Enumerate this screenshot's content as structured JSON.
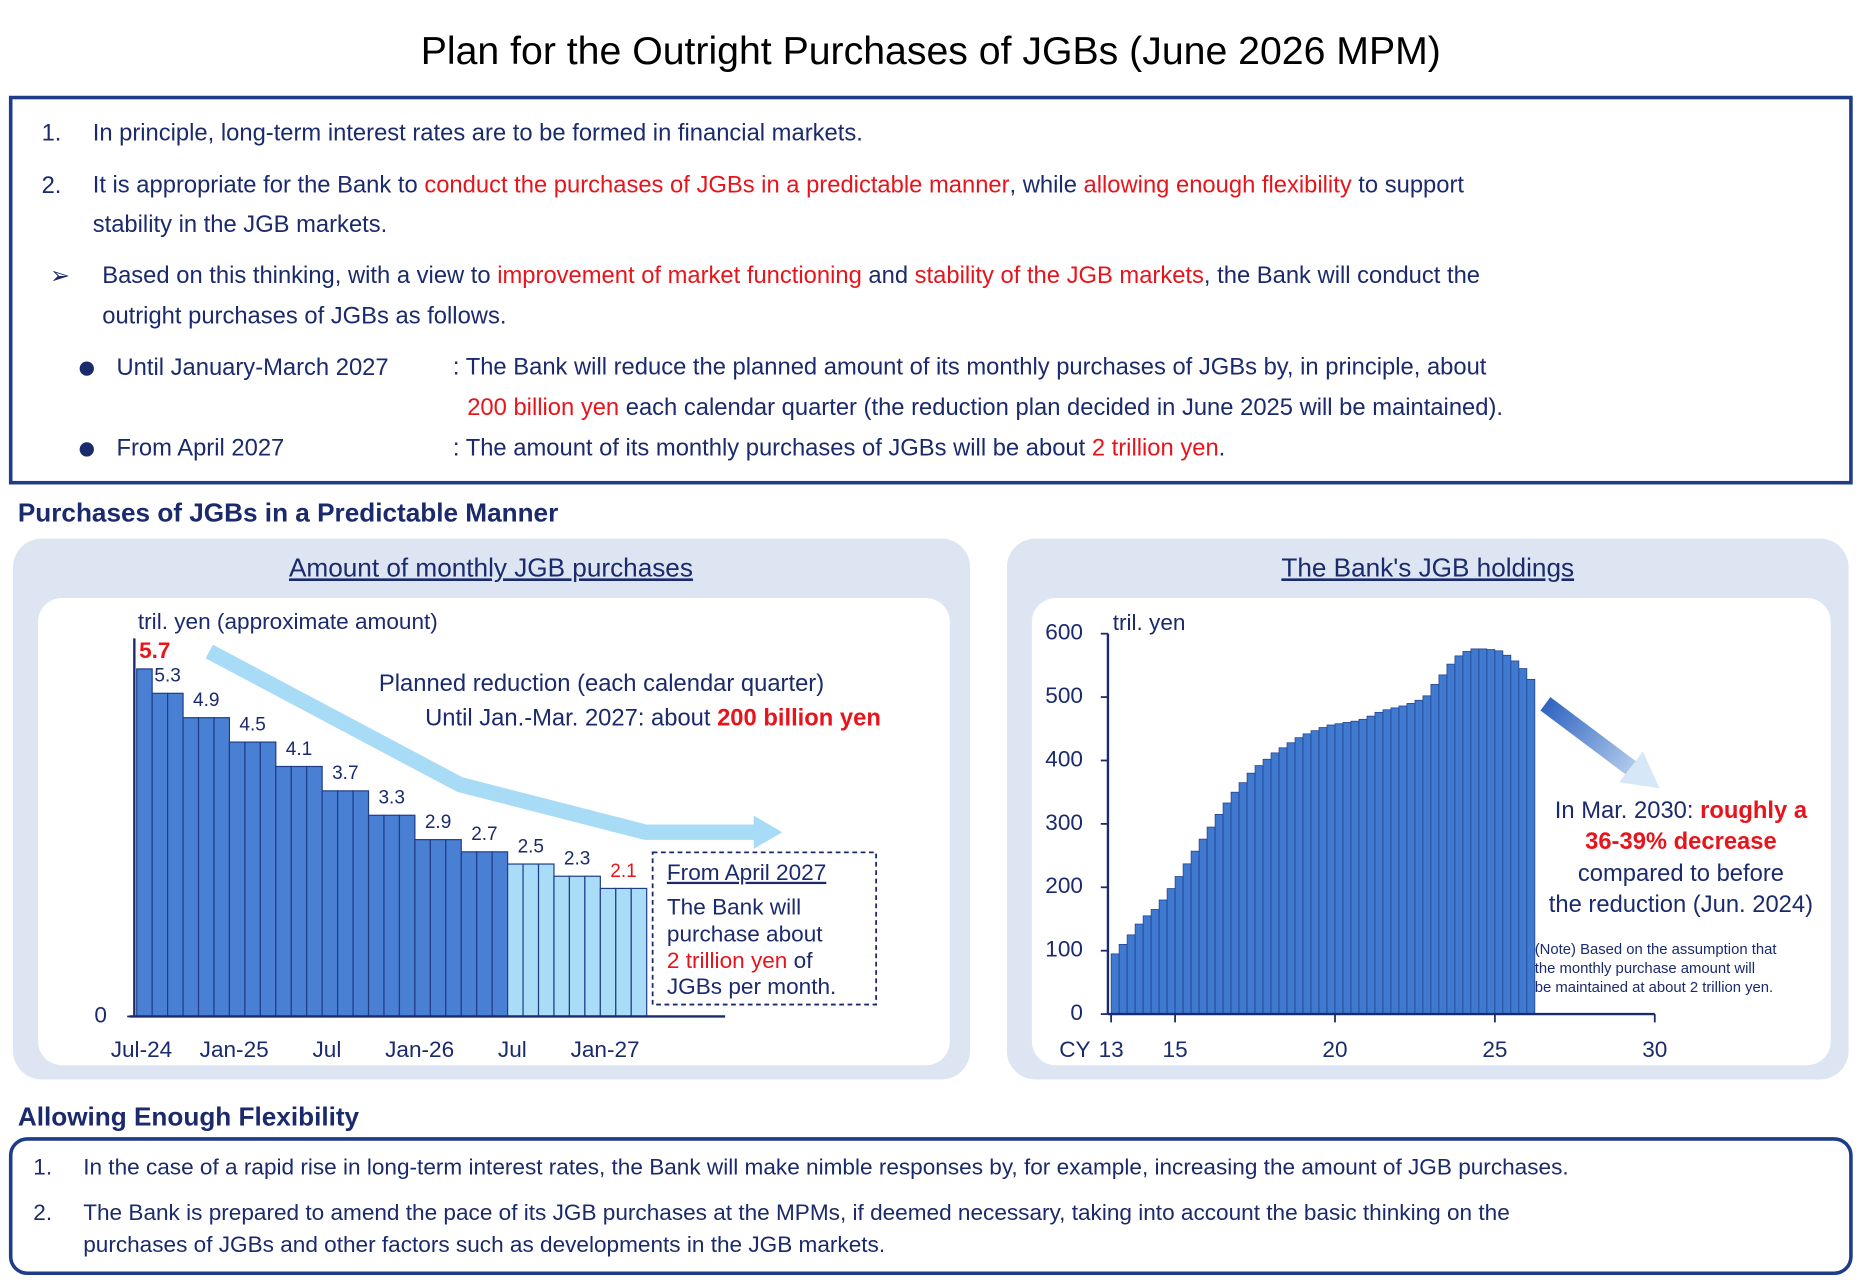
{
  "title": "Plan for the Outright Purchases of JGBs (June 2026 MPM)",
  "style": {
    "text_color": "#1a2a6c",
    "emphasis_color": "#e8141b"
  },
  "plan": {
    "items": [
      {
        "marker": "1.",
        "lines": [
          [
            {
              "text": "In principle, long-term interest rates are to be formed in financial markets."
            }
          ]
        ]
      },
      {
        "marker": "2.",
        "lines": [
          [
            {
              "text": "It is appropriate for the Bank to "
            },
            {
              "text": "conduct the purchases of JGBs in a predictable manner",
              "emphasis": true
            },
            {
              "text": ", while "
            },
            {
              "text": "allowing enough flexibility",
              "emphasis": true
            },
            {
              "text": " to support"
            }
          ],
          [
            {
              "text": "stability in the JGB markets."
            }
          ]
        ]
      },
      {
        "marker": "➢",
        "lines": [
          [
            {
              "text": "Based on this thinking, with a view to "
            },
            {
              "text": "improvement of market functioning",
              "emphasis": true
            },
            {
              "text": " and "
            },
            {
              "text": "stability of the JGB markets",
              "emphasis": true
            },
            {
              "text": ", the Bank will conduct the"
            }
          ],
          [
            {
              "text": "outright purchases of JGBs as follows."
            }
          ]
        ]
      }
    ],
    "bullets": [
      {
        "label": "Until January-March 2027",
        "lines": [
          [
            {
              "text": ": The Bank will reduce the planned amount of its monthly purchases of JGBs by, in principle, about"
            }
          ],
          [
            {
              "text": "200 billion yen",
              "emphasis": true
            },
            {
              "text": " each calendar quarter (the reduction plan decided in June 2025 will be maintained)."
            }
          ]
        ]
      },
      {
        "label": "From April 2027",
        "lines": [
          [
            {
              "text": ": The amount of its monthly purchases of JGBs will be about "
            },
            {
              "text": "2 trillion yen",
              "emphasis": true
            },
            {
              "text": "."
            }
          ]
        ]
      }
    ]
  },
  "predictable_heading": "Purchases of JGBs in a Predictable Manner",
  "chart_data": [
    {
      "type": "bar",
      "title": "Amount of monthly JGB purchases",
      "y_label": "tril. yen (approximate amount)",
      "categories": [
        "Jul-24",
        null,
        null,
        null,
        null,
        null,
        "Jan-25",
        null,
        null,
        null,
        null,
        null,
        "Jul",
        null,
        null,
        null,
        null,
        null,
        "Jan-26",
        null,
        null,
        null,
        null,
        null,
        "Jul",
        null,
        null,
        null,
        null,
        null,
        "Jan-27",
        null,
        null
      ],
      "values": [
        5.7,
        5.3,
        5.3,
        4.9,
        4.9,
        4.9,
        4.5,
        4.5,
        4.5,
        4.1,
        4.1,
        4.1,
        3.7,
        3.7,
        3.7,
        3.3,
        3.3,
        3.3,
        2.9,
        2.9,
        2.9,
        2.7,
        2.7,
        2.7,
        2.5,
        2.5,
        2.5,
        2.3,
        2.3,
        2.3,
        2.1,
        2.1,
        2.1
      ],
      "colors": [
        "#4a80d4",
        "#4a80d4",
        "#4a80d4",
        "#4a80d4",
        "#4a80d4",
        "#4a80d4",
        "#4a80d4",
        "#4a80d4",
        "#4a80d4",
        "#4a80d4",
        "#4a80d4",
        "#4a80d4",
        "#4a80d4",
        "#4a80d4",
        "#4a80d4",
        "#4a80d4",
        "#4a80d4",
        "#4a80d4",
        "#4a80d4",
        "#4a80d4",
        "#4a80d4",
        "#4a80d4",
        "#4a80d4",
        "#4a80d4",
        "#a9dcf7",
        "#a9dcf7",
        "#a9dcf7",
        "#a9dcf7",
        "#a9dcf7",
        "#a9dcf7",
        "#a9dcf7",
        "#a9dcf7",
        "#a9dcf7"
      ],
      "highlighted_labels": [
        0,
        30
      ],
      "ylim": [
        0,
        6.2
      ],
      "yticks": [
        0
      ],
      "annotations": [
        [
          {
            "text": "Planned reduction (each calendar quarter)"
          }
        ],
        [
          {
            "text": "Until Jan.-Mar. 2027: about "
          },
          {
            "text": "200 billion yen",
            "emphasis": true,
            "bold": true
          }
        ]
      ],
      "box_note": [
        [
          {
            "text": "From April 2027",
            "underline": true
          }
        ],
        [
          {
            "text": "The Bank will"
          }
        ],
        [
          {
            "text": "purchase about"
          }
        ],
        [
          {
            "text": "2 trillion yen",
            "emphasis": true
          },
          {
            "text": " of"
          }
        ],
        [
          {
            "text": "JGBs per month."
          }
        ]
      ]
    },
    {
      "type": "bar",
      "title": "The Bank's JGB holdings",
      "y_label": "tril. yen",
      "x_label": "CY",
      "color": "#3f7ad0",
      "x": [
        13.125,
        13.375,
        13.625,
        13.875,
        14.125,
        14.375,
        14.625,
        14.875,
        15.125,
        15.375,
        15.625,
        15.875,
        16.125,
        16.375,
        16.625,
        16.875,
        17.125,
        17.375,
        17.625,
        17.875,
        18.125,
        18.375,
        18.625,
        18.875,
        19.125,
        19.375,
        19.625,
        19.875,
        20.125,
        20.375,
        20.625,
        20.875,
        21.125,
        21.375,
        21.625,
        21.875,
        22.125,
        22.375,
        22.625,
        22.875,
        23.125,
        23.375,
        23.625,
        23.875,
        24.125,
        24.375,
        24.625,
        24.875,
        25.125,
        25.375,
        25.625,
        25.875,
        26.125
      ],
      "values": [
        95,
        110,
        125,
        142,
        155,
        165,
        180,
        198,
        217,
        237,
        257,
        276,
        295,
        315,
        333,
        350,
        365,
        380,
        392,
        402,
        412,
        420,
        428,
        436,
        442,
        447,
        452,
        456,
        458,
        460,
        462,
        465,
        470,
        476,
        480,
        483,
        486,
        490,
        495,
        502,
        520,
        535,
        552,
        565,
        572,
        576,
        576,
        575,
        573,
        566,
        557,
        545,
        528
      ],
      "xlim": [
        12.9,
        30
      ],
      "xticks": [
        13,
        15,
        20,
        25,
        30
      ],
      "ylim": [
        0,
        600
      ],
      "yticks": [
        0,
        100,
        200,
        300,
        400,
        500,
        600
      ],
      "annotations": [
        [
          {
            "text": "In Mar. 2030: "
          },
          {
            "text": "roughly a",
            "emphasis": true,
            "bold": true
          }
        ],
        [
          {
            "text": "36-39% decrease",
            "emphasis": true,
            "bold": true
          }
        ],
        [
          {
            "text": "compared to before"
          }
        ],
        [
          {
            "text": "the reduction (Jun. 2024)"
          }
        ]
      ],
      "note": [
        [
          {
            "text": "(Note) Based on the assumption that"
          }
        ],
        [
          {
            "text": "the monthly purchase amount will"
          }
        ],
        [
          {
            "text": "be maintained at about 2 trillion yen."
          }
        ]
      ]
    }
  ],
  "flexibility": {
    "heading": "Allowing Enough Flexibility",
    "items": [
      {
        "marker": "1.",
        "lines": [
          [
            {
              "text": "In the case of a rapid rise in long-term interest rates, the Bank will make nimble responses by, for example, increasing the amount of JGB purchases."
            }
          ]
        ]
      },
      {
        "marker": "2.",
        "lines": [
          [
            {
              "text": "The Bank is prepared to amend the pace of its JGB purchases at the MPMs, if deemed necessary, taking into account the basic thinking on the"
            }
          ],
          [
            {
              "text": "purchases of JGBs and other factors such as developments in the JGB markets."
            }
          ]
        ]
      }
    ]
  }
}
